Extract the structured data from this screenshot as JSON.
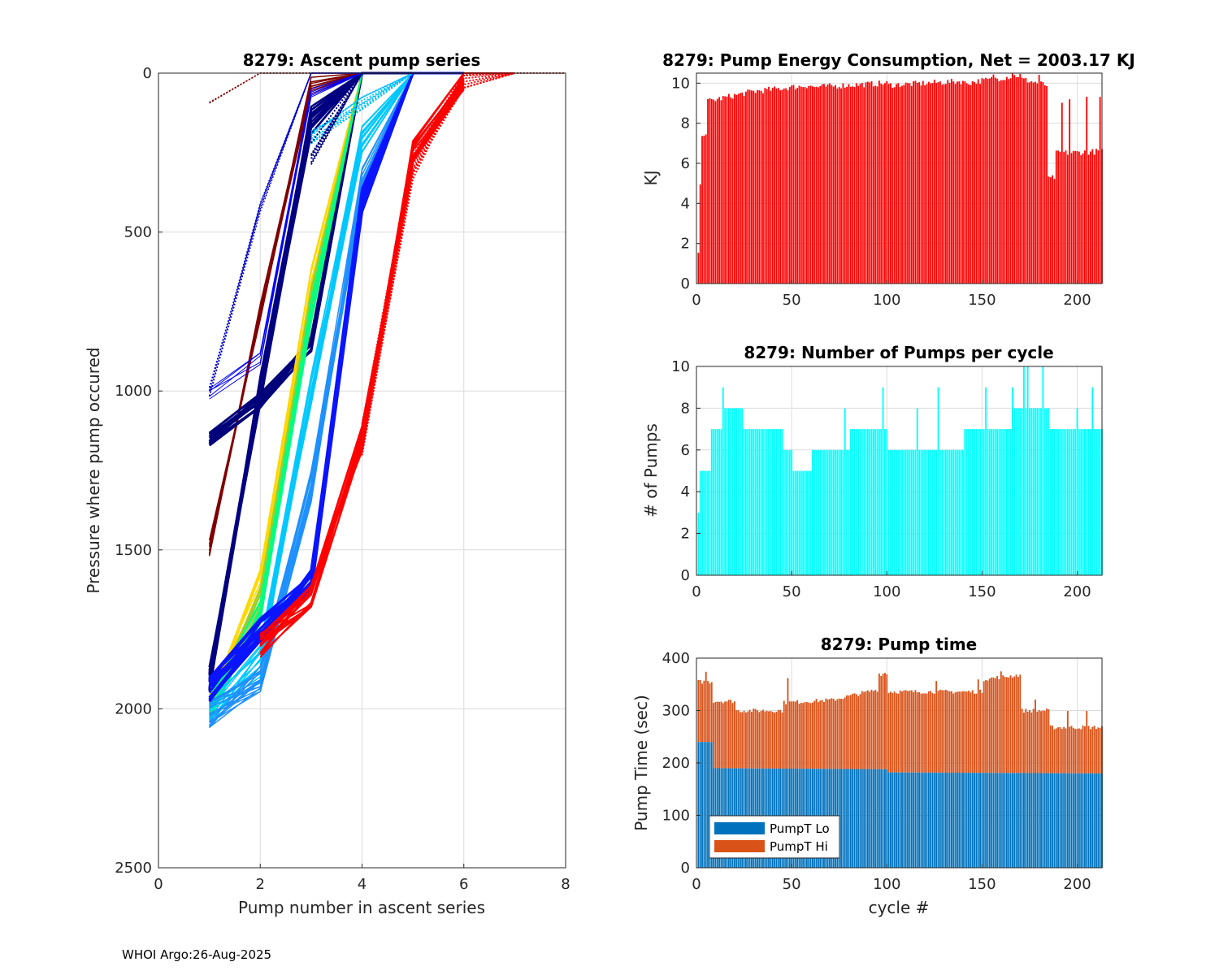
{
  "footer": "WHOI Argo:26-Aug-2025",
  "colors": {
    "energy_bars": "#ff0000",
    "pump_bars": "#00ffff",
    "pumpt_lo": "#0072bd",
    "pumpt_hi": "#d95319",
    "grid": "#dcdcdc",
    "axis": "#262626"
  },
  "chart_data": [
    {
      "id": "ascent",
      "type": "line",
      "title": "8279: Ascent pump series",
      "xlabel": "Pump number in ascent series",
      "ylabel": "Pressure where pump occured",
      "xlim": [
        0,
        8
      ],
      "ylim": [
        0,
        2500
      ],
      "y_reversed": true,
      "xticks": [
        0,
        2,
        4,
        6,
        8
      ],
      "yticks": [
        0,
        500,
        1000,
        1500,
        2000,
        2500
      ],
      "grid": true,
      "series": [
        {
          "name": "early-dark-red",
          "color": "#800000",
          "style": "solid",
          "width": 1.5,
          "count": 8,
          "x": [
            1,
            2,
            3,
            4,
            5,
            6,
            7
          ],
          "y": [
            1500,
            750,
            40,
            0,
            0,
            0,
            0
          ],
          "spread": 30
        },
        {
          "name": "early-dark-red-top",
          "color": "#800000",
          "style": "dotted",
          "width": 1.5,
          "count": 2,
          "x": [
            1,
            2,
            4,
            6,
            8
          ],
          "y": [
            90,
            0,
            0,
            0,
            0
          ],
          "spread": 5
        },
        {
          "name": "navy-deep",
          "color": "#000080",
          "style": "solid",
          "width": 2.5,
          "count": 14,
          "x": [
            1,
            2,
            3,
            4,
            5
          ],
          "y": [
            1900,
            1000,
            150,
            0,
            0
          ],
          "spread": 50
        },
        {
          "name": "navy-mid",
          "color": "#00007a",
          "style": "solid",
          "width": 3,
          "count": 10,
          "x": [
            1,
            2,
            3,
            4,
            5
          ],
          "y": [
            1150,
            1030,
            850,
            0,
            0
          ],
          "spread": 25
        },
        {
          "name": "blue-shallow",
          "color": "#0000ff",
          "style": "solid",
          "width": 1,
          "count": 5,
          "x": [
            1,
            2,
            3,
            4
          ],
          "y": [
            1010,
            900,
            60,
            0
          ],
          "spread": 20
        },
        {
          "name": "blue-vertical",
          "color": "#0000cd",
          "style": "dotted",
          "width": 1.5,
          "count": 4,
          "x": [
            1,
            2,
            3,
            4
          ],
          "y": [
            1000,
            430,
            0,
            0
          ],
          "spread": 20
        },
        {
          "name": "yellow",
          "color": "#ffd700",
          "style": "solid",
          "width": 1.5,
          "count": 8,
          "x": [
            1,
            2,
            3,
            4,
            5
          ],
          "y": [
            1980,
            1600,
            650,
            0,
            0
          ],
          "spread": 40
        },
        {
          "name": "yellow-green",
          "color": "#9acd32",
          "style": "solid",
          "width": 1.5,
          "count": 12,
          "x": [
            1,
            2,
            3,
            4,
            5
          ],
          "y": [
            1990,
            1650,
            700,
            0,
            0
          ],
          "spread": 40
        },
        {
          "name": "green",
          "color": "#00ff80",
          "style": "solid",
          "width": 1.5,
          "count": 12,
          "x": [
            1,
            2,
            3,
            4,
            5
          ],
          "y": [
            2000,
            1700,
            750,
            0,
            0
          ],
          "spread": 40
        },
        {
          "name": "cyan",
          "color": "#00c8ff",
          "style": "solid",
          "width": 1.5,
          "count": 14,
          "x": [
            1,
            2,
            3,
            4,
            5,
            6
          ],
          "y": [
            2010,
            1850,
            1000,
            200,
            0,
            0
          ],
          "spread": 50
        },
        {
          "name": "light-blue",
          "color": "#1e90ff",
          "style": "solid",
          "width": 1.5,
          "count": 18,
          "x": [
            1,
            2,
            3,
            4,
            5,
            6
          ],
          "y": [
            2020,
            1900,
            1300,
            350,
            0,
            0
          ],
          "spread": 50
        },
        {
          "name": "blue-heavy",
          "color": "#0a14ff",
          "style": "solid",
          "width": 3,
          "count": 16,
          "x": [
            1,
            2,
            3,
            4,
            5,
            6
          ],
          "y": [
            1940,
            1750,
            1600,
            400,
            0,
            0
          ],
          "spread": 40
        },
        {
          "name": "red",
          "color": "#ff0000",
          "style": "solid",
          "width": 2,
          "count": 16,
          "x": [
            2,
            3,
            4,
            5,
            6
          ],
          "y": [
            1800,
            1650,
            1150,
            250,
            20
          ],
          "spread": 40
        },
        {
          "name": "red-dotted-top",
          "color": "#ff0000",
          "style": "dotted",
          "width": 2,
          "count": 10,
          "x": [
            4,
            5,
            6,
            7
          ],
          "y": [
            1150,
            300,
            30,
            0
          ],
          "spread": 60
        },
        {
          "name": "cyan-dotted-top",
          "color": "#00bfff",
          "style": "dotted",
          "width": 1.5,
          "count": 10,
          "x": [
            3,
            4,
            5,
            6
          ],
          "y": [
            200,
            100,
            0,
            0
          ],
          "spread": 30
        },
        {
          "name": "navy-dotted-top",
          "color": "#000080",
          "style": "dotted",
          "width": 2,
          "count": 6,
          "x": [
            3,
            4,
            5,
            6
          ],
          "y": [
            250,
            0,
            0,
            0
          ],
          "spread": 40
        }
      ]
    },
    {
      "id": "energy",
      "type": "bar",
      "title": "8279: Pump Energy Consumption,  Net = 2003.17 KJ",
      "xlabel": "",
      "ylabel": "KJ",
      "xlim": [
        0,
        213
      ],
      "ylim": [
        0,
        10.5
      ],
      "xticks": [
        0,
        50,
        100,
        150,
        200
      ],
      "yticks": [
        0,
        2,
        4,
        6,
        8,
        10
      ],
      "grid": true,
      "segments": [
        {
          "x0": 1,
          "x1": 1,
          "v0": 1.6,
          "v1": 1.6
        },
        {
          "x0": 2,
          "x1": 2,
          "v0": 4.8,
          "v1": 4.8
        },
        {
          "x0": 3,
          "x1": 5,
          "v0": 7.5,
          "v1": 7.5
        },
        {
          "x0": 6,
          "x1": 30,
          "v0": 9.1,
          "v1": 9.6
        },
        {
          "x0": 31,
          "x1": 60,
          "v0": 9.6,
          "v1": 9.9
        },
        {
          "x0": 61,
          "x1": 100,
          "v0": 9.8,
          "v1": 10.0
        },
        {
          "x0": 101,
          "x1": 140,
          "v0": 9.9,
          "v1": 10.1
        },
        {
          "x0": 141,
          "x1": 170,
          "v0": 10.0,
          "v1": 10.4
        },
        {
          "x0": 171,
          "x1": 184,
          "v0": 10.2,
          "v1": 9.9
        },
        {
          "x0": 185,
          "x1": 188,
          "v0": 5.2,
          "v1": 5.3
        },
        {
          "x0": 189,
          "x1": 213,
          "v0": 6.5,
          "v1": 6.6
        }
      ],
      "spikes": [
        {
          "x": 166,
          "v": 10.6
        },
        {
          "x": 156,
          "v": 10.5
        },
        {
          "x": 180,
          "v": 10.4
        },
        {
          "x": 192,
          "v": 9.0
        },
        {
          "x": 196,
          "v": 9.2
        },
        {
          "x": 205,
          "v": 9.3
        },
        {
          "x": 212,
          "v": 9.3
        }
      ]
    },
    {
      "id": "pumps",
      "type": "bar",
      "title": "8279: Number of Pumps per cycle",
      "xlabel": "",
      "ylabel": "# of Pumps",
      "xlim": [
        0,
        213
      ],
      "ylim": [
        0,
        10
      ],
      "xticks": [
        0,
        50,
        100,
        150,
        200
      ],
      "yticks": [
        0,
        2,
        4,
        6,
        8,
        10
      ],
      "grid": true,
      "segments": [
        {
          "x0": 1,
          "x1": 1,
          "v0": 3,
          "v1": 3
        },
        {
          "x0": 2,
          "x1": 7,
          "v0": 5,
          "v1": 5
        },
        {
          "x0": 8,
          "x1": 14,
          "v0": 7,
          "v1": 7
        },
        {
          "x0": 15,
          "x1": 24,
          "v0": 8,
          "v1": 8
        },
        {
          "x0": 25,
          "x1": 45,
          "v0": 7,
          "v1": 7
        },
        {
          "x0": 46,
          "x1": 50,
          "v0": 6,
          "v1": 6
        },
        {
          "x0": 51,
          "x1": 60,
          "v0": 5,
          "v1": 5
        },
        {
          "x0": 61,
          "x1": 80,
          "v0": 6,
          "v1": 6
        },
        {
          "x0": 81,
          "x1": 100,
          "v0": 7,
          "v1": 7
        },
        {
          "x0": 101,
          "x1": 110,
          "v0": 6,
          "v1": 6
        },
        {
          "x0": 111,
          "x1": 140,
          "v0": 6,
          "v1": 6
        },
        {
          "x0": 141,
          "x1": 165,
          "v0": 7,
          "v1": 7
        },
        {
          "x0": 166,
          "x1": 185,
          "v0": 8,
          "v1": 8
        },
        {
          "x0": 186,
          "x1": 213,
          "v0": 7,
          "v1": 7
        }
      ],
      "spikes": [
        {
          "x": 14,
          "v": 9
        },
        {
          "x": 98,
          "v": 9
        },
        {
          "x": 127,
          "v": 9
        },
        {
          "x": 152,
          "v": 9
        },
        {
          "x": 166,
          "v": 9
        },
        {
          "x": 172,
          "v": 10
        },
        {
          "x": 174,
          "v": 10
        },
        {
          "x": 182,
          "v": 10
        },
        {
          "x": 208,
          "v": 9
        },
        {
          "x": 78,
          "v": 8
        },
        {
          "x": 116,
          "v": 8
        },
        {
          "x": 200,
          "v": 8
        }
      ]
    },
    {
      "id": "pumptime",
      "type": "bar",
      "stacked": true,
      "title": "8279: Pump time",
      "xlabel": "cycle #",
      "ylabel": "Pump Time (sec)",
      "xlim": [
        0,
        213
      ],
      "ylim": [
        0,
        400
      ],
      "xticks": [
        0,
        50,
        100,
        150,
        200
      ],
      "yticks": [
        0,
        100,
        200,
        300,
        400
      ],
      "grid": true,
      "legend": {
        "location": "bottom-left",
        "entries": [
          "PumpT Lo",
          "PumpT Hi"
        ]
      },
      "lo_segments": [
        {
          "x0": 1,
          "x1": 8,
          "v0": 240,
          "v1": 240
        },
        {
          "x0": 9,
          "x1": 100,
          "v0": 190,
          "v1": 188
        },
        {
          "x0": 101,
          "x1": 213,
          "v0": 182,
          "v1": 180
        }
      ],
      "total_segments": [
        {
          "x0": 1,
          "x1": 8,
          "v0": 355,
          "v1": 355
        },
        {
          "x0": 9,
          "x1": 20,
          "v0": 318,
          "v1": 318
        },
        {
          "x0": 21,
          "x1": 45,
          "v0": 300,
          "v1": 300
        },
        {
          "x0": 46,
          "x1": 70,
          "v0": 315,
          "v1": 320
        },
        {
          "x0": 71,
          "x1": 95,
          "v0": 320,
          "v1": 340
        },
        {
          "x0": 96,
          "x1": 100,
          "v0": 370,
          "v1": 370
        },
        {
          "x0": 101,
          "x1": 150,
          "v0": 336,
          "v1": 336
        },
        {
          "x0": 151,
          "x1": 170,
          "v0": 360,
          "v1": 368
        },
        {
          "x0": 171,
          "x1": 185,
          "v0": 300,
          "v1": 300
        },
        {
          "x0": 186,
          "x1": 213,
          "v0": 268,
          "v1": 268
        }
      ],
      "spikes": [
        {
          "x": 5,
          "v": 375
        },
        {
          "x": 48,
          "v": 365
        },
        {
          "x": 99,
          "v": 372
        },
        {
          "x": 126,
          "v": 360
        },
        {
          "x": 148,
          "v": 358
        },
        {
          "x": 160,
          "v": 372
        },
        {
          "x": 178,
          "v": 320
        },
        {
          "x": 195,
          "v": 300
        },
        {
          "x": 205,
          "v": 298
        }
      ]
    }
  ]
}
